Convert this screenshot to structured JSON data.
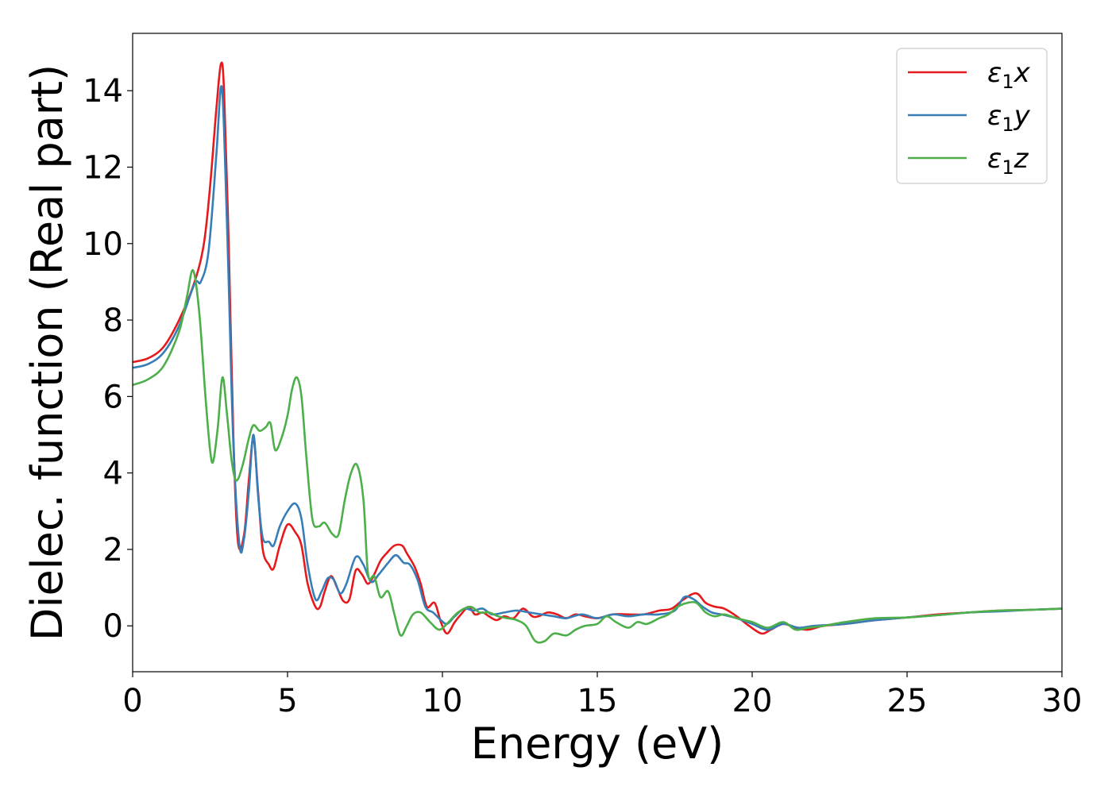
{
  "chart_data": {
    "type": "line",
    "xlabel": "Energy (eV)",
    "ylabel": "Dielec. function (Real part)",
    "xlim": [
      0,
      30
    ],
    "ylim": [
      -1.2,
      15.5
    ],
    "xticks": [
      0,
      5,
      10,
      15,
      20,
      25,
      30
    ],
    "yticks": [
      0,
      2,
      4,
      6,
      8,
      10,
      12,
      14
    ],
    "grid": false,
    "legend_position": "top-right",
    "series": [
      {
        "name": "ε₁x",
        "legend_main": "ε",
        "legend_sub": "1",
        "legend_var": "x",
        "color": "#e41a1c",
        "points": [
          [
            0,
            6.9
          ],
          [
            0.5,
            7.0
          ],
          [
            1.0,
            7.3
          ],
          [
            1.5,
            8.0
          ],
          [
            2.0,
            9.0
          ],
          [
            2.3,
            10.0
          ],
          [
            2.5,
            11.5
          ],
          [
            2.7,
            13.5
          ],
          [
            2.85,
            14.7
          ],
          [
            2.95,
            14.0
          ],
          [
            3.1,
            10.0
          ],
          [
            3.25,
            5.0
          ],
          [
            3.4,
            2.2
          ],
          [
            3.6,
            2.4
          ],
          [
            3.75,
            3.8
          ],
          [
            3.9,
            4.9
          ],
          [
            4.05,
            3.5
          ],
          [
            4.2,
            2.0
          ],
          [
            4.4,
            1.6
          ],
          [
            4.55,
            1.5
          ],
          [
            4.75,
            2.1
          ],
          [
            5.0,
            2.65
          ],
          [
            5.25,
            2.45
          ],
          [
            5.45,
            2.1
          ],
          [
            5.65,
            1.1
          ],
          [
            5.9,
            0.5
          ],
          [
            6.05,
            0.5
          ],
          [
            6.2,
            0.9
          ],
          [
            6.4,
            1.3
          ],
          [
            6.6,
            1.0
          ],
          [
            6.8,
            0.65
          ],
          [
            7.0,
            0.7
          ],
          [
            7.2,
            1.45
          ],
          [
            7.4,
            1.35
          ],
          [
            7.6,
            1.1
          ],
          [
            7.8,
            1.35
          ],
          [
            8.0,
            1.7
          ],
          [
            8.2,
            1.9
          ],
          [
            8.45,
            2.1
          ],
          [
            8.7,
            2.1
          ],
          [
            8.85,
            1.9
          ],
          [
            9.1,
            1.55
          ],
          [
            9.3,
            1.1
          ],
          [
            9.5,
            0.5
          ],
          [
            9.75,
            0.6
          ],
          [
            9.95,
            0.1
          ],
          [
            10.15,
            -0.2
          ],
          [
            10.4,
            0.1
          ],
          [
            10.6,
            0.3
          ],
          [
            10.85,
            0.5
          ],
          [
            11.05,
            0.3
          ],
          [
            11.3,
            0.35
          ],
          [
            11.5,
            0.25
          ],
          [
            11.75,
            0.15
          ],
          [
            12.0,
            0.25
          ],
          [
            12.3,
            0.2
          ],
          [
            12.6,
            0.45
          ],
          [
            12.9,
            0.25
          ],
          [
            13.1,
            0.25
          ],
          [
            13.4,
            0.35
          ],
          [
            13.7,
            0.3
          ],
          [
            14.0,
            0.2
          ],
          [
            14.3,
            0.3
          ],
          [
            14.6,
            0.25
          ],
          [
            15.0,
            0.2
          ],
          [
            15.5,
            0.3
          ],
          [
            16.0,
            0.3
          ],
          [
            16.5,
            0.3
          ],
          [
            17.0,
            0.4
          ],
          [
            17.4,
            0.45
          ],
          [
            17.8,
            0.7
          ],
          [
            18.2,
            0.85
          ],
          [
            18.5,
            0.6
          ],
          [
            18.8,
            0.5
          ],
          [
            19.1,
            0.45
          ],
          [
            19.5,
            0.25
          ],
          [
            19.9,
            0.0
          ],
          [
            20.3,
            -0.2
          ],
          [
            20.6,
            -0.1
          ],
          [
            21.0,
            0.05
          ],
          [
            21.4,
            -0.05
          ],
          [
            21.8,
            -0.1
          ],
          [
            22.3,
            0.0
          ],
          [
            23.0,
            0.05
          ],
          [
            24.0,
            0.15
          ],
          [
            25.0,
            0.22
          ],
          [
            26.0,
            0.3
          ],
          [
            27.0,
            0.35
          ],
          [
            28.0,
            0.4
          ],
          [
            29.0,
            0.42
          ],
          [
            30.0,
            0.45
          ]
        ]
      },
      {
        "name": "ε₁y",
        "legend_main": "ε",
        "legend_sub": "1",
        "legend_var": "y",
        "color": "#377eb8",
        "points": [
          [
            0,
            6.75
          ],
          [
            0.5,
            6.85
          ],
          [
            1.0,
            7.15
          ],
          [
            1.5,
            7.85
          ],
          [
            2.0,
            8.95
          ],
          [
            2.2,
            9.0
          ],
          [
            2.45,
            9.8
          ],
          [
            2.7,
            12.3
          ],
          [
            2.85,
            14.1
          ],
          [
            2.95,
            13.0
          ],
          [
            3.1,
            9.0
          ],
          [
            3.25,
            4.8
          ],
          [
            3.45,
            2.1
          ],
          [
            3.6,
            2.3
          ],
          [
            3.75,
            3.5
          ],
          [
            3.9,
            5.0
          ],
          [
            4.05,
            3.4
          ],
          [
            4.2,
            2.3
          ],
          [
            4.4,
            2.2
          ],
          [
            4.55,
            2.1
          ],
          [
            4.75,
            2.6
          ],
          [
            5.0,
            3.0
          ],
          [
            5.25,
            3.2
          ],
          [
            5.45,
            2.8
          ],
          [
            5.65,
            1.6
          ],
          [
            5.9,
            0.7
          ],
          [
            6.1,
            0.9
          ],
          [
            6.3,
            1.25
          ],
          [
            6.5,
            1.2
          ],
          [
            6.7,
            0.85
          ],
          [
            6.9,
            1.1
          ],
          [
            7.2,
            1.8
          ],
          [
            7.45,
            1.6
          ],
          [
            7.7,
            1.15
          ],
          [
            7.95,
            1.35
          ],
          [
            8.25,
            1.65
          ],
          [
            8.5,
            1.85
          ],
          [
            8.75,
            1.65
          ],
          [
            8.95,
            1.6
          ],
          [
            9.2,
            1.2
          ],
          [
            9.45,
            0.5
          ],
          [
            9.7,
            0.35
          ],
          [
            9.95,
            0.15
          ],
          [
            10.15,
            0.05
          ],
          [
            10.4,
            0.25
          ],
          [
            10.7,
            0.45
          ],
          [
            11.0,
            0.4
          ],
          [
            11.3,
            0.45
          ],
          [
            11.6,
            0.3
          ],
          [
            12.0,
            0.35
          ],
          [
            12.4,
            0.4
          ],
          [
            12.8,
            0.35
          ],
          [
            13.2,
            0.3
          ],
          [
            13.6,
            0.25
          ],
          [
            14.0,
            0.2
          ],
          [
            14.5,
            0.3
          ],
          [
            15.0,
            0.2
          ],
          [
            15.5,
            0.3
          ],
          [
            16.0,
            0.25
          ],
          [
            16.5,
            0.3
          ],
          [
            17.0,
            0.3
          ],
          [
            17.5,
            0.4
          ],
          [
            17.8,
            0.75
          ],
          [
            18.1,
            0.7
          ],
          [
            18.4,
            0.5
          ],
          [
            18.7,
            0.35
          ],
          [
            19.0,
            0.3
          ],
          [
            19.5,
            0.2
          ],
          [
            20.0,
            0.05
          ],
          [
            20.5,
            -0.1
          ],
          [
            21.0,
            0.05
          ],
          [
            21.5,
            -0.05
          ],
          [
            22.0,
            0.0
          ],
          [
            23.0,
            0.05
          ],
          [
            24.0,
            0.15
          ],
          [
            25.0,
            0.22
          ],
          [
            26.0,
            0.28
          ],
          [
            27.0,
            0.35
          ],
          [
            28.0,
            0.38
          ],
          [
            29.0,
            0.42
          ],
          [
            30.0,
            0.45
          ]
        ]
      },
      {
        "name": "ε₁z",
        "legend_main": "ε",
        "legend_sub": "1",
        "legend_var": "z",
        "color": "#4daf4a",
        "points": [
          [
            0,
            6.3
          ],
          [
            0.5,
            6.45
          ],
          [
            1.0,
            6.8
          ],
          [
            1.5,
            7.7
          ],
          [
            1.75,
            8.6
          ],
          [
            1.95,
            9.3
          ],
          [
            2.15,
            8.2
          ],
          [
            2.35,
            6.0
          ],
          [
            2.5,
            4.6
          ],
          [
            2.6,
            4.3
          ],
          [
            2.75,
            5.2
          ],
          [
            2.9,
            6.5
          ],
          [
            3.05,
            5.5
          ],
          [
            3.2,
            4.3
          ],
          [
            3.35,
            3.8
          ],
          [
            3.55,
            4.2
          ],
          [
            3.75,
            4.9
          ],
          [
            3.9,
            5.25
          ],
          [
            4.1,
            5.1
          ],
          [
            4.3,
            5.2
          ],
          [
            4.45,
            5.3
          ],
          [
            4.6,
            4.6
          ],
          [
            4.8,
            4.9
          ],
          [
            5.0,
            5.5
          ],
          [
            5.15,
            6.2
          ],
          [
            5.3,
            6.5
          ],
          [
            5.45,
            6.0
          ],
          [
            5.6,
            4.5
          ],
          [
            5.8,
            2.8
          ],
          [
            6.0,
            2.6
          ],
          [
            6.2,
            2.7
          ],
          [
            6.45,
            2.4
          ],
          [
            6.65,
            2.4
          ],
          [
            6.85,
            3.3
          ],
          [
            7.05,
            4.0
          ],
          [
            7.25,
            4.2
          ],
          [
            7.45,
            3.3
          ],
          [
            7.6,
            1.35
          ],
          [
            7.8,
            1.3
          ],
          [
            8.0,
            0.75
          ],
          [
            8.25,
            0.9
          ],
          [
            8.45,
            0.3
          ],
          [
            8.65,
            -0.25
          ],
          [
            8.85,
            0.0
          ],
          [
            9.05,
            0.3
          ],
          [
            9.3,
            0.35
          ],
          [
            9.6,
            0.1
          ],
          [
            9.9,
            -0.1
          ],
          [
            10.2,
            0.1
          ],
          [
            10.5,
            0.35
          ],
          [
            10.9,
            0.5
          ],
          [
            11.2,
            0.35
          ],
          [
            11.5,
            0.35
          ],
          [
            11.8,
            0.25
          ],
          [
            12.1,
            0.2
          ],
          [
            12.4,
            0.15
          ],
          [
            12.7,
            0.0
          ],
          [
            13.0,
            -0.4
          ],
          [
            13.3,
            -0.4
          ],
          [
            13.6,
            -0.2
          ],
          [
            14.0,
            -0.25
          ],
          [
            14.3,
            -0.1
          ],
          [
            14.6,
            0.0
          ],
          [
            15.0,
            0.05
          ],
          [
            15.3,
            0.25
          ],
          [
            15.6,
            0.1
          ],
          [
            16.0,
            -0.05
          ],
          [
            16.3,
            0.1
          ],
          [
            16.6,
            0.05
          ],
          [
            17.0,
            0.2
          ],
          [
            17.3,
            0.3
          ],
          [
            17.6,
            0.5
          ],
          [
            17.9,
            0.6
          ],
          [
            18.2,
            0.6
          ],
          [
            18.5,
            0.35
          ],
          [
            18.8,
            0.25
          ],
          [
            19.1,
            0.3
          ],
          [
            19.5,
            0.2
          ],
          [
            20.0,
            0.1
          ],
          [
            20.5,
            -0.05
          ],
          [
            21.0,
            0.1
          ],
          [
            21.4,
            -0.1
          ],
          [
            21.8,
            -0.05
          ],
          [
            22.3,
            0.0
          ],
          [
            23.0,
            0.1
          ],
          [
            24.0,
            0.2
          ],
          [
            25.0,
            0.22
          ],
          [
            26.0,
            0.28
          ],
          [
            27.0,
            0.35
          ],
          [
            28.0,
            0.4
          ],
          [
            29.0,
            0.42
          ],
          [
            30.0,
            0.45
          ]
        ]
      }
    ]
  }
}
